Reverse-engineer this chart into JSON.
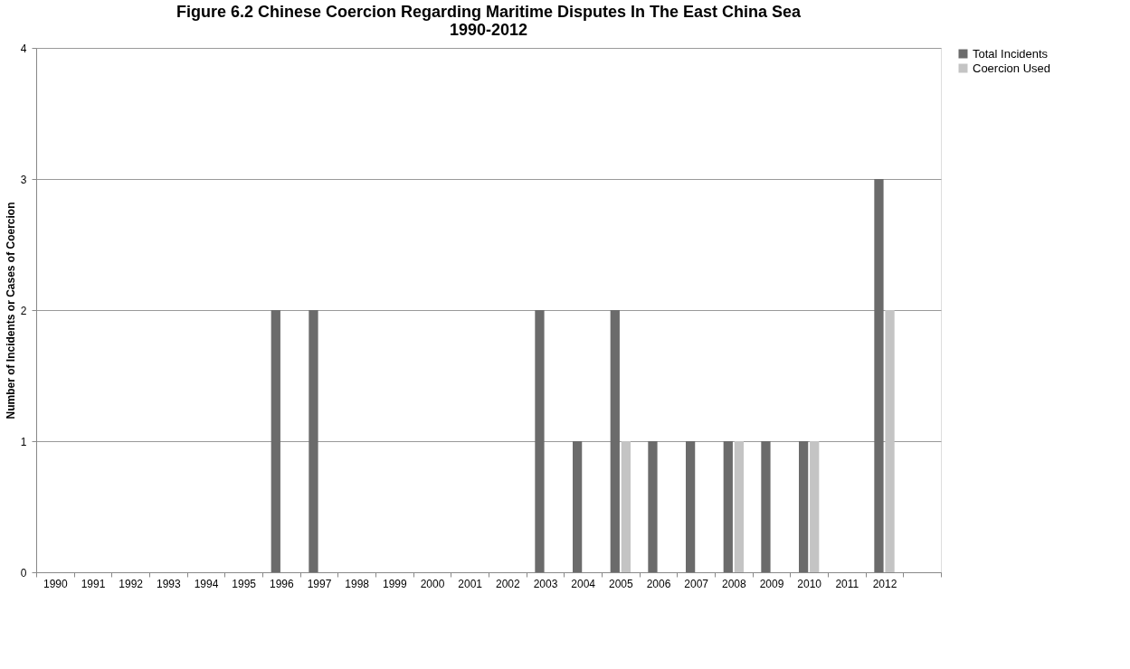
{
  "chart_data": {
    "type": "bar",
    "title": [
      "Figure 6.2 Chinese Coercion Regarding Maritime Disputes In The East China Sea",
      "1990-2012"
    ],
    "ylabel": "Number of Incidents or Cases of Coercion",
    "categories": [
      "1990",
      "1991",
      "1992",
      "1993",
      "1994",
      "1995",
      "1996",
      "1997",
      "1998",
      "1999",
      "2000",
      "2001",
      "2002",
      "2003",
      "2004",
      "2005",
      "2006",
      "2007",
      "2008",
      "2009",
      "2010",
      "2011",
      "2012",
      null
    ],
    "series": [
      {
        "name": "Total Incidents",
        "color": "#6b6b6b",
        "values": [
          0,
          0,
          0,
          0,
          0,
          0,
          2,
          2,
          0,
          0,
          0,
          0,
          0,
          2,
          1,
          2,
          1,
          1,
          1,
          1,
          1,
          0,
          3,
          null
        ]
      },
      {
        "name": "Coercion Used",
        "color": "#c4c4c4",
        "values": [
          0,
          0,
          0,
          0,
          0,
          0,
          0,
          0,
          0,
          0,
          0,
          0,
          0,
          0,
          0,
          1,
          0,
          0,
          1,
          0,
          1,
          0,
          2,
          null
        ]
      }
    ],
    "ylim": [
      0,
      4
    ],
    "yticks": [
      0,
      1,
      2,
      3,
      4
    ],
    "grid": "y",
    "legend": "right"
  }
}
